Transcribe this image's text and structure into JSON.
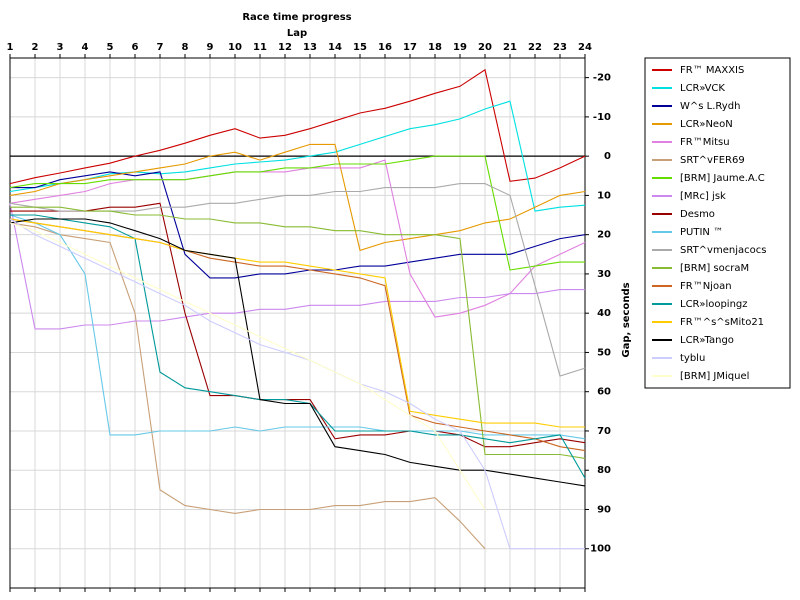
{
  "chart_data": {
    "type": "line",
    "title": "Race time progress",
    "x_label": "Lap",
    "y_label": "Gap, seconds",
    "x": [
      1,
      2,
      3,
      4,
      5,
      6,
      7,
      8,
      9,
      10,
      11,
      12,
      13,
      14,
      15,
      16,
      17,
      18,
      19,
      20,
      21,
      22,
      23,
      24
    ],
    "xlim": [
      1,
      24
    ],
    "xticks": [
      1,
      2,
      3,
      4,
      5,
      6,
      7,
      8,
      9,
      10,
      11,
      12,
      13,
      14,
      15,
      16,
      17,
      18,
      19,
      20,
      21,
      22,
      23,
      24
    ],
    "ylim": [
      110,
      -25
    ],
    "yticks": [
      -20,
      -10,
      0,
      10,
      20,
      30,
      40,
      50,
      60,
      70,
      80,
      90,
      100
    ],
    "grid": true,
    "reference_line": 0,
    "legend": "right",
    "series": [
      {
        "name": "FR™ MAXXIS",
        "color": "#cc0000",
        "values": [
          7,
          5.5,
          4.3,
          3,
          1.8,
          0,
          -1.5,
          -3.3,
          -5.3,
          -7,
          -4.6,
          -5.3,
          -7,
          -9,
          -11,
          -12.2,
          -14,
          -16,
          -17.8,
          -22,
          6.4,
          5.6,
          3,
          0
        ]
      },
      {
        "name": "LCR»VCK",
        "color": "#00e0e0",
        "values": [
          9,
          8,
          7,
          6,
          4.5,
          4,
          4.5,
          4,
          3,
          2,
          1.5,
          1,
          0,
          -1,
          -3,
          -5,
          -7,
          -8,
          -9.5,
          -12,
          -14,
          14,
          13,
          12.5
        ]
      },
      {
        "name": "W^s L.Rydh",
        "color": "#000099",
        "values": [
          8,
          8,
          6,
          5,
          4,
          5,
          4,
          25,
          31,
          31,
          30,
          30,
          29,
          29,
          28,
          28,
          27,
          26,
          25,
          25,
          25,
          23,
          21,
          20
        ]
      },
      {
        "name": "LCR»NeoN",
        "color": "#e69900",
        "values": [
          10,
          9,
          7,
          6,
          5,
          4,
          3,
          2,
          0,
          -1,
          1,
          -1,
          -3,
          -3,
          24,
          22,
          21,
          20,
          19,
          17,
          16,
          13,
          10,
          9
        ]
      },
      {
        "name": "FR™Mitsu",
        "color": "#e080e0",
        "values": [
          12,
          11,
          10,
          9,
          7,
          6,
          6,
          6,
          5,
          4,
          4,
          4,
          3,
          3,
          3,
          1,
          30,
          41,
          40,
          38,
          35,
          28,
          25,
          22
        ]
      },
      {
        "name": "SRT^vFER69",
        "color": "#c8a078",
        "values": [
          17,
          18,
          20,
          21,
          22,
          40,
          85,
          89,
          90,
          91,
          90,
          90,
          90,
          89,
          89,
          88,
          88,
          87,
          93,
          100,
          null,
          null,
          null,
          null
        ]
      },
      {
        "name": "[BRM] Jaume.A.C",
        "color": "#66dd00",
        "values": [
          8,
          7,
          7,
          7,
          6,
          6,
          6,
          6,
          5,
          4,
          4,
          3,
          3,
          2,
          2,
          2,
          1,
          0,
          0,
          0,
          29,
          28,
          27,
          27
        ]
      },
      {
        "name": "[MRc] jsk",
        "color": "#cc88ee",
        "values": [
          12,
          44,
          44,
          43,
          43,
          42,
          42,
          41,
          40,
          40,
          39,
          39,
          38,
          38,
          38,
          37,
          37,
          37,
          36,
          36,
          35,
          35,
          34,
          34
        ]
      },
      {
        "name": "Desmo",
        "color": "#990000",
        "values": [
          14,
          14,
          14,
          14,
          13,
          13,
          12,
          40,
          61,
          61,
          62,
          62,
          62,
          72,
          71,
          71,
          70,
          70,
          71,
          74,
          74,
          73,
          72,
          73
        ]
      },
      {
        "name": "PUTIN ™",
        "color": "#66c8e8",
        "values": [
          15,
          17,
          20,
          30,
          71,
          71,
          70,
          70,
          70,
          69,
          70,
          69,
          69,
          69,
          69,
          70,
          70,
          70,
          70,
          71,
          71,
          71,
          71,
          72
        ]
      },
      {
        "name": "SRT^vmenjacocs",
        "color": "#aaaaaa",
        "values": [
          12,
          13,
          14,
          14,
          14,
          14,
          13,
          13,
          12,
          12,
          11,
          10,
          10,
          9,
          9,
          8,
          8,
          8,
          7,
          7,
          10,
          33,
          56,
          54
        ]
      },
      {
        "name": "[BRM] socraM",
        "color": "#88bb33",
        "values": [
          13,
          13,
          13,
          14,
          14,
          15,
          15,
          16,
          16,
          17,
          17,
          18,
          18,
          19,
          19,
          20,
          20,
          20,
          21,
          76,
          76,
          76,
          76,
          77
        ]
      },
      {
        "name": "FR™Njoan",
        "color": "#cc6622",
        "values": [
          16,
          17,
          18,
          19,
          20,
          21,
          22,
          24,
          26,
          27,
          28,
          28,
          29,
          30,
          31,
          33,
          66,
          68,
          69,
          70,
          71,
          72,
          74,
          75
        ]
      },
      {
        "name": "LCR»loopingz",
        "color": "#009999",
        "values": [
          15,
          15,
          16,
          17,
          18,
          21,
          55,
          59,
          60,
          61,
          62,
          62,
          63,
          70,
          70,
          70,
          70,
          71,
          71,
          72,
          73,
          72,
          71,
          82
        ]
      },
      {
        "name": "FR™^s^sMito21",
        "color": "#ffcc00",
        "values": [
          16,
          17,
          18,
          19,
          20,
          21,
          22,
          24,
          25,
          26,
          27,
          27,
          28,
          29,
          30,
          31,
          65,
          66,
          67,
          68,
          68,
          68,
          69,
          69
        ]
      },
      {
        "name": "LCR»Tango",
        "color": "#000000",
        "values": [
          17,
          16,
          16,
          16,
          17,
          19,
          21,
          24,
          25,
          26,
          62,
          63,
          63,
          74,
          75,
          76,
          78,
          79,
          80,
          80,
          81,
          82,
          83,
          84
        ]
      },
      {
        "name": "tyblu",
        "color": "#ccccff",
        "values": [
          16,
          20,
          23,
          26,
          29,
          32,
          35,
          38,
          42,
          45,
          48,
          50,
          52,
          55,
          58,
          60,
          63,
          67,
          70,
          80,
          100,
          100,
          100,
          100
        ]
      },
      {
        "name": "[BRM] JMiquel",
        "color": "#ffffcc",
        "values": [
          17,
          19,
          22,
          25,
          28,
          31,
          34,
          37,
          40,
          43,
          46,
          49,
          52,
          55,
          58,
          62,
          66,
          70,
          80,
          90,
          null,
          null,
          null,
          null
        ]
      }
    ]
  }
}
